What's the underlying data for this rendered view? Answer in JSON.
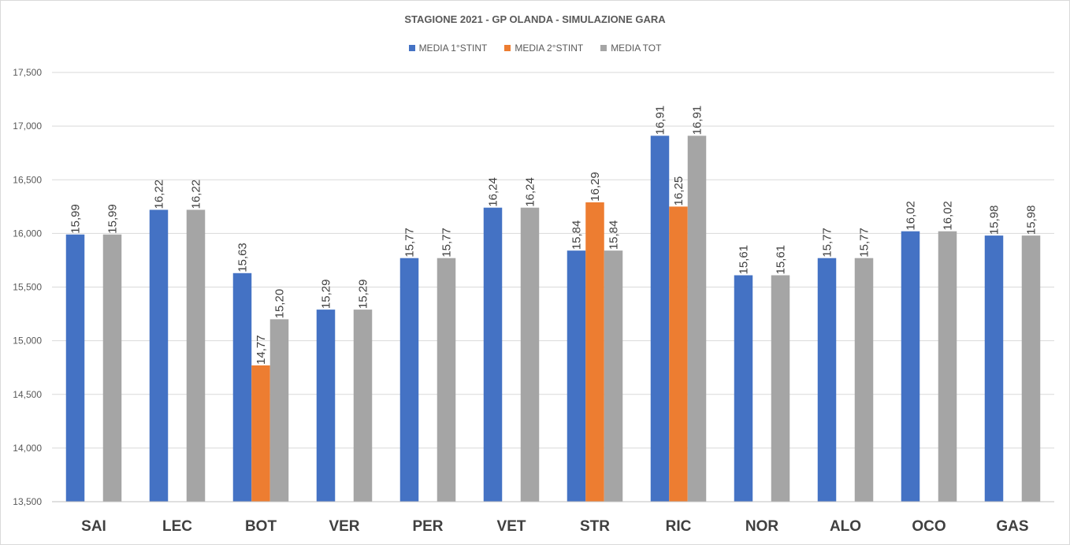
{
  "chart_data": {
    "type": "bar",
    "title": "STAGIONE 2021 - GP OLANDA - SIMULAZIONE GARA",
    "xlabel": "",
    "ylabel": "",
    "categories": [
      "SAI",
      "LEC",
      "BOT",
      "VER",
      "PER",
      "VET",
      "STR",
      "RIC",
      "NOR",
      "ALO",
      "OCO",
      "GAS"
    ],
    "series": [
      {
        "name": "MEDIA 1°STINT",
        "color": "#4472C4",
        "values": [
          15.99,
          16.22,
          15.63,
          15.29,
          15.77,
          16.24,
          15.84,
          16.91,
          15.61,
          15.77,
          16.02,
          15.98
        ],
        "labels": [
          "15,99",
          "16,22",
          "15,63",
          "15,29",
          "15,77",
          "16,24",
          "15,84",
          "16,91",
          "15,61",
          "15,77",
          "16,02",
          "15,98"
        ]
      },
      {
        "name": "MEDIA 2°STINT",
        "color": "#ED7D31",
        "values": [
          null,
          null,
          14.77,
          null,
          null,
          null,
          16.29,
          16.25,
          null,
          null,
          null,
          null
        ],
        "labels": [
          null,
          null,
          "14,77",
          null,
          null,
          null,
          "16,29",
          "16,25",
          null,
          null,
          null,
          null
        ]
      },
      {
        "name": "MEDIA TOT",
        "color": "#A5A5A5",
        "values": [
          15.99,
          16.22,
          15.2,
          15.29,
          15.77,
          16.24,
          15.84,
          16.91,
          15.61,
          15.77,
          16.02,
          15.98
        ],
        "labels": [
          "15,99",
          "16,22",
          "15,20",
          "15,29",
          "15,77",
          "16,24",
          "15,84",
          "16,91",
          "15,61",
          "15,77",
          "16,02",
          "15,98"
        ]
      }
    ],
    "ylim": [
      13.5,
      17.5
    ],
    "yticks": [
      13.5,
      14.0,
      14.5,
      15.0,
      15.5,
      16.0,
      16.5,
      17.0,
      17.5
    ],
    "ytick_labels": [
      "13,500",
      "14,000",
      "14,500",
      "15,000",
      "15,500",
      "16,000",
      "16,500",
      "17,000",
      "17,500"
    ],
    "grid": true,
    "legend_position": "top-center"
  }
}
